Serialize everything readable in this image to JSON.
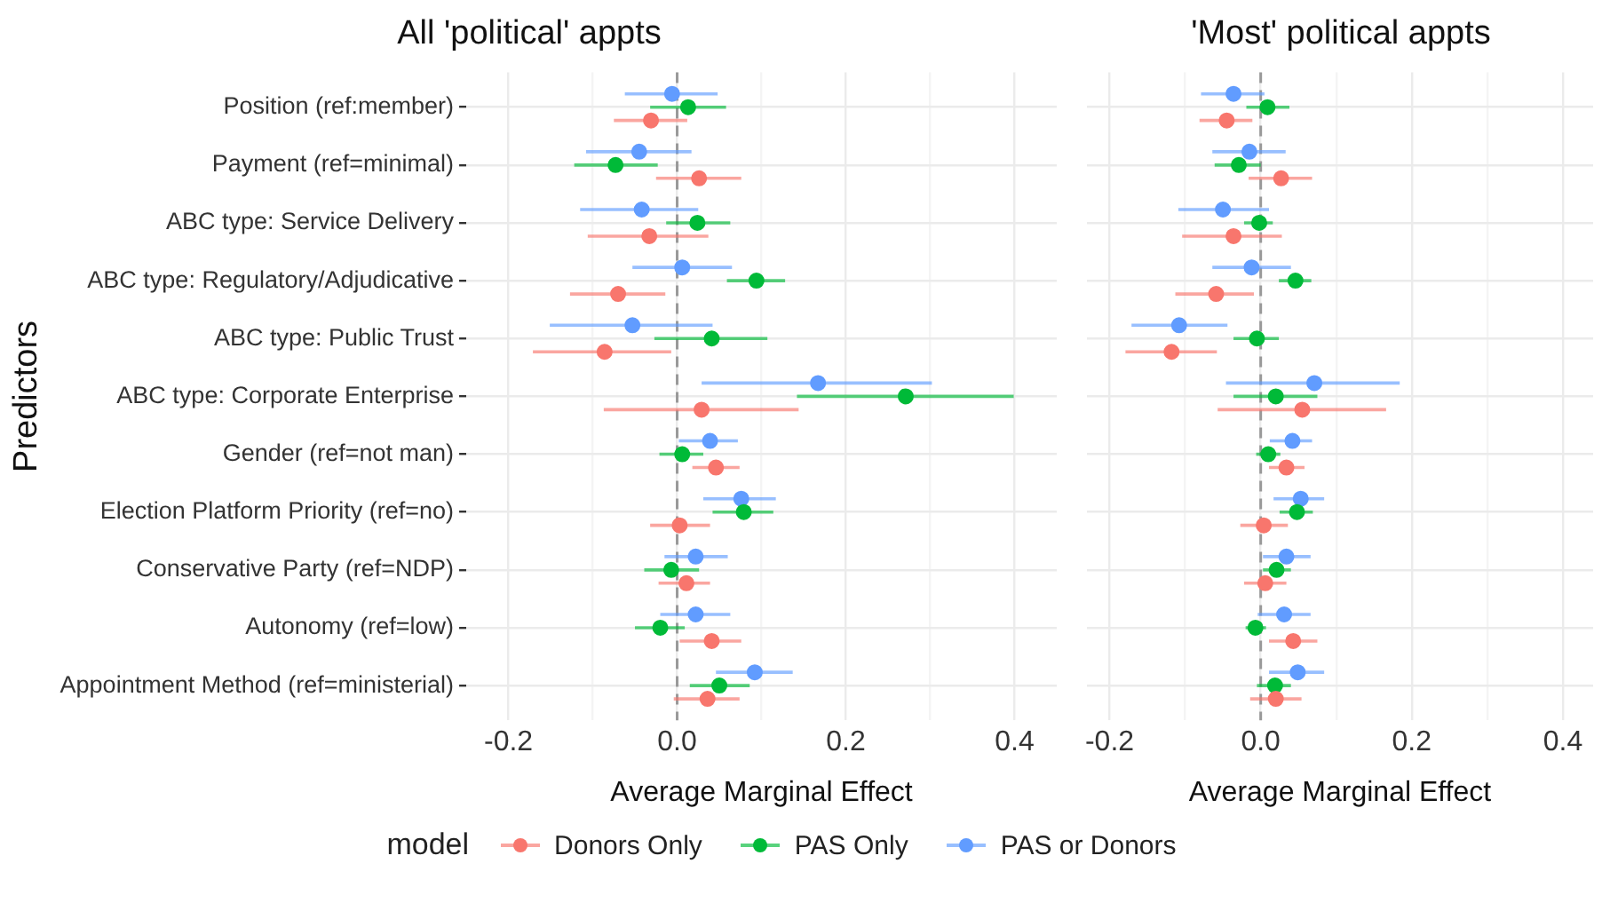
{
  "chart_data": [
    {
      "type": "scatter",
      "orientation": "horizontal",
      "title": "All 'political' appts",
      "xlabel": "Average Marginal Effect",
      "ylabel": "Predictors",
      "legend": "bottom",
      "legend_title": "model",
      "marker": "circle",
      "grid": true,
      "categories": [
        "Position (ref:member)",
        "Payment (ref=minimal)",
        "ABC type: Service Delivery",
        "ABC type: Regulatory/Adjudicative",
        "ABC type: Public Trust",
        "ABC type: Corporate Enterprise",
        "Gender (ref=not man)",
        "Election Platform Priority (ref=no)",
        "Conservative Party (ref=NDP)",
        "Autonomy (ref=low)",
        "Appointment Method (ref=ministerial)"
      ],
      "series": [
        {
          "name": "Donors Only",
          "color": "#f8766d",
          "values": [
            -0.031,
            0.026,
            -0.033,
            -0.07,
            -0.086,
            0.029,
            0.046,
            0.003,
            0.011,
            0.041,
            0.036
          ],
          "errors": [
            [
              -0.075,
              0.012
            ],
            [
              -0.025,
              0.076
            ],
            [
              -0.106,
              0.037
            ],
            [
              -0.127,
              -0.014
            ],
            [
              -0.171,
              -0.007
            ],
            [
              -0.087,
              0.144
            ],
            [
              0.018,
              0.074
            ],
            [
              -0.032,
              0.039
            ],
            [
              -0.022,
              0.039
            ],
            [
              0.003,
              0.076
            ],
            [
              -0.004,
              0.074
            ]
          ]
        },
        {
          "name": "PAS Only",
          "color": "#00ba38",
          "values": [
            0.013,
            -0.073,
            0.024,
            0.094,
            0.041,
            0.271,
            0.006,
            0.079,
            -0.007,
            -0.02,
            0.05
          ],
          "errors": [
            [
              -0.032,
              0.058
            ],
            [
              -0.122,
              -0.023
            ],
            [
              -0.013,
              0.063
            ],
            [
              0.059,
              0.128
            ],
            [
              -0.027,
              0.107
            ],
            [
              0.142,
              0.399
            ],
            [
              -0.021,
              0.031
            ],
            [
              0.042,
              0.114
            ],
            [
              -0.039,
              0.026
            ],
            [
              -0.05,
              0.009
            ],
            [
              0.015,
              0.086
            ]
          ]
        },
        {
          "name": "PAS or Donors",
          "color": "#619cff",
          "values": [
            -0.006,
            -0.045,
            -0.042,
            0.006,
            -0.053,
            0.167,
            0.039,
            0.076,
            0.022,
            0.022,
            0.092
          ],
          "errors": [
            [
              -0.062,
              0.048
            ],
            [
              -0.108,
              0.017
            ],
            [
              -0.115,
              0.025
            ],
            [
              -0.053,
              0.065
            ],
            [
              -0.151,
              0.042
            ],
            [
              0.029,
              0.302
            ],
            [
              0.002,
              0.072
            ],
            [
              0.031,
              0.117
            ],
            [
              -0.015,
              0.06
            ],
            [
              -0.02,
              0.063
            ],
            [
              0.046,
              0.137
            ]
          ]
        }
      ],
      "xlim": [
        -0.25,
        0.45
      ],
      "xticks": [
        {
          "value": -0.2,
          "label": "-0.2"
        },
        {
          "value": -0.1,
          "label": null
        },
        {
          "value": 0,
          "label": "0.0"
        },
        {
          "value": 0.1,
          "label": null
        },
        {
          "value": 0.2,
          "label": "0.2"
        },
        {
          "value": 0.3,
          "label": null
        },
        {
          "value": 0.4,
          "label": "0.4"
        }
      ],
      "ref_lines": [
        {
          "axis": "x",
          "value": 0,
          "color": "#999999",
          "line_style": "dashed"
        }
      ]
    },
    {
      "type": "scatter",
      "orientation": "horizontal",
      "title": "'Most' political appts",
      "xlabel": "Average Marginal Effect",
      "tick_labels": "x",
      "marker": "circle",
      "grid": true,
      "categories": [
        null,
        null,
        null,
        null,
        null,
        null,
        null,
        null,
        null,
        null,
        null
      ],
      "series": [
        {
          "color": "#f8766d",
          "values": [
            -0.045,
            0.027,
            -0.036,
            -0.059,
            -0.118,
            0.055,
            0.034,
            0.004,
            0.006,
            0.043,
            0.02
          ],
          "errors": [
            [
              -0.081,
              -0.011
            ],
            [
              -0.016,
              0.068
            ],
            [
              -0.104,
              0.028
            ],
            [
              -0.113,
              -0.009
            ],
            [
              -0.179,
              -0.058
            ],
            [
              -0.057,
              0.166
            ],
            [
              0.011,
              0.058
            ],
            [
              -0.027,
              0.036
            ],
            [
              -0.022,
              0.034
            ],
            [
              0.011,
              0.075
            ],
            [
              -0.014,
              0.054
            ]
          ]
        },
        {
          "color": "#00ba38",
          "values": [
            0.009,
            -0.029,
            -0.002,
            0.046,
            -0.005,
            0.02,
            0.01,
            0.048,
            0.021,
            -0.007,
            0.019
          ],
          "errors": [
            [
              -0.019,
              0.038
            ],
            [
              -0.061,
              0
            ],
            [
              -0.022,
              0.016
            ],
            [
              0.024,
              0.067
            ],
            [
              -0.036,
              0.024
            ],
            [
              -0.036,
              0.075
            ],
            [
              -0.006,
              0.026
            ],
            [
              0.025,
              0.069
            ],
            [
              0.003,
              0.04
            ],
            [
              -0.02,
              0.007
            ],
            [
              -0.005,
              0.04
            ]
          ]
        },
        {
          "color": "#619cff",
          "values": [
            -0.036,
            -0.015,
            -0.05,
            -0.012,
            -0.108,
            0.071,
            0.042,
            0.053,
            0.034,
            0.031,
            0.049
          ],
          "errors": [
            [
              -0.079,
              0.005
            ],
            [
              -0.064,
              0.033
            ],
            [
              -0.109,
              0.011
            ],
            [
              -0.064,
              0.04
            ],
            [
              -0.171,
              -0.044
            ],
            [
              -0.046,
              0.184
            ],
            [
              0.012,
              0.068
            ],
            [
              0.017,
              0.084
            ],
            [
              0.003,
              0.066
            ],
            [
              -0.004,
              0.066
            ],
            [
              0.011,
              0.084
            ]
          ]
        }
      ],
      "xlim": [
        -0.23,
        0.44
      ],
      "xticks": [
        {
          "value": -0.2,
          "label": "-0.2"
        },
        {
          "value": -0.1,
          "label": null
        },
        {
          "value": 0,
          "label": "0.0"
        },
        {
          "value": 0.1,
          "label": null
        },
        {
          "value": 0.2,
          "label": "0.2"
        },
        {
          "value": 0.3,
          "label": null
        },
        {
          "value": 0.4,
          "label": "0.4"
        }
      ],
      "ref_lines": [
        {
          "axis": "x",
          "value": 0,
          "color": "#999999",
          "line_style": "dashed"
        }
      ]
    }
  ]
}
